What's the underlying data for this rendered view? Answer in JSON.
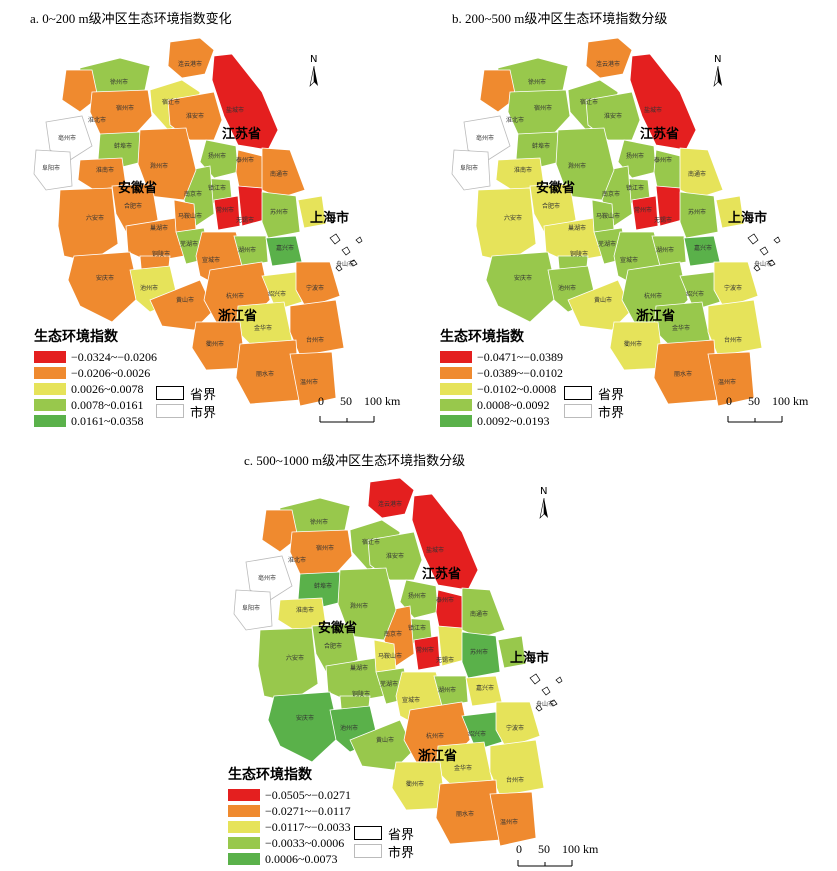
{
  "panels": [
    {
      "title": "a. 0~200 m级冲区生态环境指数变化",
      "legend_title": "生态环境指数",
      "classes": [
        {
          "label": "−0.0324~−0.0206",
          "color": "#e41f1f"
        },
        {
          "label": "−0.0206~0.0026",
          "color": "#ef8a2f"
        },
        {
          "label": "0.0026~0.0078",
          "color": "#e6e35a"
        },
        {
          "label": "0.0078~0.0161",
          "color": "#98c84c"
        },
        {
          "label": "0.0161~0.0358",
          "color": "#5ab14a"
        }
      ]
    },
    {
      "title": "b. 200~500 m级冲区生态环境指数分级",
      "legend_title": "生态环境指数",
      "classes": [
        {
          "label": "−0.0471~−0.0389",
          "color": "#e41f1f"
        },
        {
          "label": "−0.0389~−0.0102",
          "color": "#ef8a2f"
        },
        {
          "label": "−0.0102~0.0008",
          "color": "#e6e35a"
        },
        {
          "label": "0.0008~0.0092",
          "color": "#98c84c"
        },
        {
          "label": "0.0092~0.0193",
          "color": "#5ab14a"
        }
      ]
    },
    {
      "title": "c. 500~1000 m级冲区生态环境指数分级",
      "legend_title": "生态环境指数",
      "classes": [
        {
          "label": "−0.0505~−0.0271",
          "color": "#e41f1f"
        },
        {
          "label": "−0.0271~−0.0117",
          "color": "#ef8a2f"
        },
        {
          "label": "−0.0117~−0.0033",
          "color": "#e6e35a"
        },
        {
          "label": "−0.0033~0.0006",
          "color": "#98c84c"
        },
        {
          "label": "0.0006~0.0073",
          "color": "#5ab14a"
        }
      ]
    }
  ],
  "boundaries": {
    "province": "省界",
    "city": "市界"
  },
  "scale": {
    "l0": "0",
    "l50": "50",
    "l100": "100 km"
  },
  "north": "N",
  "provinces": {
    "jiangsu": "江苏省",
    "anhui": "安徽省",
    "zhejiang": "浙江省",
    "shanghai": "上海市"
  },
  "cities": {
    "lianyungang": "连云港市",
    "xuzhou": "徐州市",
    "suqian": "宿迁市",
    "huaian": "淮安市",
    "yancheng": "盐城市",
    "yangzhou": "扬州市",
    "taizhou_js": "泰州市",
    "nantong": "南通市",
    "zhenjiang": "镇江市",
    "changzhou": "常州市",
    "wuxi": "无锡市",
    "suzhou": "苏州市",
    "nanjing": "南京市",
    "huaibei": "淮北市",
    "suzhou_ah": "宿州市",
    "bozhou": "亳州市",
    "fuyang": "阜阳市",
    "bengbu": "蚌埠市",
    "huainan": "淮南市",
    "chuzhou": "滁州市",
    "hefei": "合肥市",
    "luan": "六安市",
    "maanshan": "马鞍山市",
    "wuhu": "芜湖市",
    "chaohu": "巢湖市",
    "tongling": "铜陵市",
    "xuancheng": "宣城市",
    "anqing": "安庆市",
    "chizhou": "池州市",
    "huangshan": "黄山市",
    "huzhou": "湖州市",
    "jiaxing": "嘉兴市",
    "hangzhou": "杭州市",
    "shaoxing": "绍兴市",
    "ningbo": "宁波市",
    "zhoushan": "舟山市",
    "jinhua": "金华市",
    "quzhou": "衢州市",
    "taizhou_zj": "台州市",
    "lishui": "丽水市",
    "wenzhou": "温州市"
  }
}
